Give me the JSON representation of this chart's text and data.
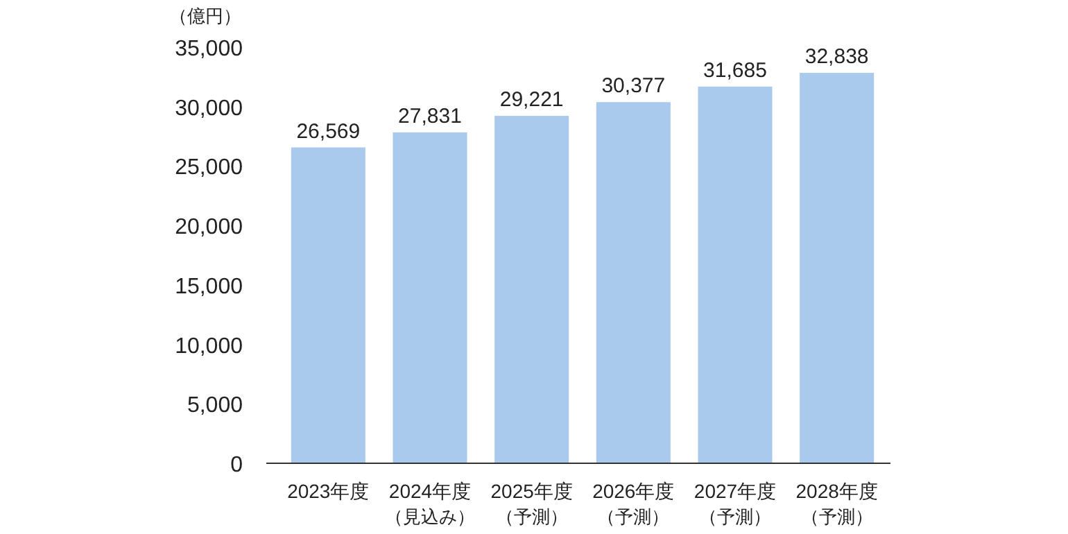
{
  "chart_data": {
    "type": "bar",
    "ylabel": "（億円）",
    "categories": [
      "2023年度",
      "2024年度（見込み）",
      "2025年度（予測）",
      "2026年度（予測）",
      "2027年度（予測）",
      "2028年度（予測）"
    ],
    "values": [
      26569,
      27831,
      29221,
      30377,
      31685,
      32838
    ],
    "value_labels": [
      "26,569",
      "27,831",
      "29,221",
      "30,377",
      "31,685",
      "32,838"
    ],
    "color": "#a9caec",
    "ylim": [
      0,
      35000
    ],
    "yticks": [
      {
        "value": 0,
        "label": "0"
      },
      {
        "value": 5000,
        "label": "5,000"
      },
      {
        "value": 10000,
        "label": "10,000"
      },
      {
        "value": 15000,
        "label": "15,000"
      },
      {
        "value": 20000,
        "label": "20,000"
      },
      {
        "value": 25000,
        "label": "25,000"
      },
      {
        "value": 30000,
        "label": "30,000"
      },
      {
        "value": 35000,
        "label": "35,000"
      }
    ]
  }
}
